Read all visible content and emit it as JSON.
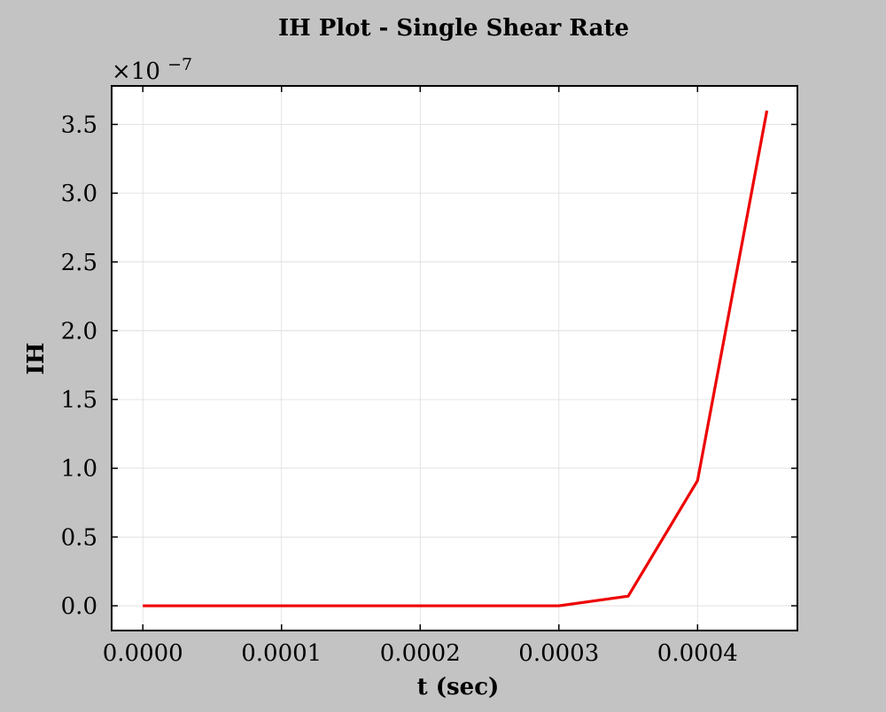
{
  "chart_data": {
    "type": "line",
    "title": "IH Plot - Single Shear Rate",
    "xlabel": "t (sec)",
    "ylabel": "IH",
    "y_offset_text": {
      "base": "×10",
      "exponent": "−7"
    },
    "xlim": [
      -2.25e-05,
      0.000472
    ],
    "ylim": [
      -0.18,
      3.78
    ],
    "x_ticks": [
      0,
      0.0001,
      0.0002,
      0.0003,
      0.0004
    ],
    "x_tick_labels": [
      "0.0000",
      "0.0001",
      "0.0002",
      "0.0003",
      "0.0004"
    ],
    "y_ticks": [
      0,
      0.5,
      1.0,
      1.5,
      2.0,
      2.5,
      3.0,
      3.5
    ],
    "y_tick_labels": [
      "0.0",
      "0.5",
      "1.0",
      "1.5",
      "2.0",
      "2.5",
      "3.0",
      "3.5"
    ],
    "grid": true,
    "y_scale_note": "values in units of 1e-7",
    "series": [
      {
        "color": "#ee0000",
        "x": [
          0,
          5e-05,
          0.0001,
          0.00015,
          0.0002,
          0.00025,
          0.0003,
          0.00035,
          0.0004,
          0.00045
        ],
        "y": [
          0,
          0,
          0,
          0,
          0,
          0,
          0,
          0.07,
          0.91,
          3.6
        ]
      }
    ]
  }
}
